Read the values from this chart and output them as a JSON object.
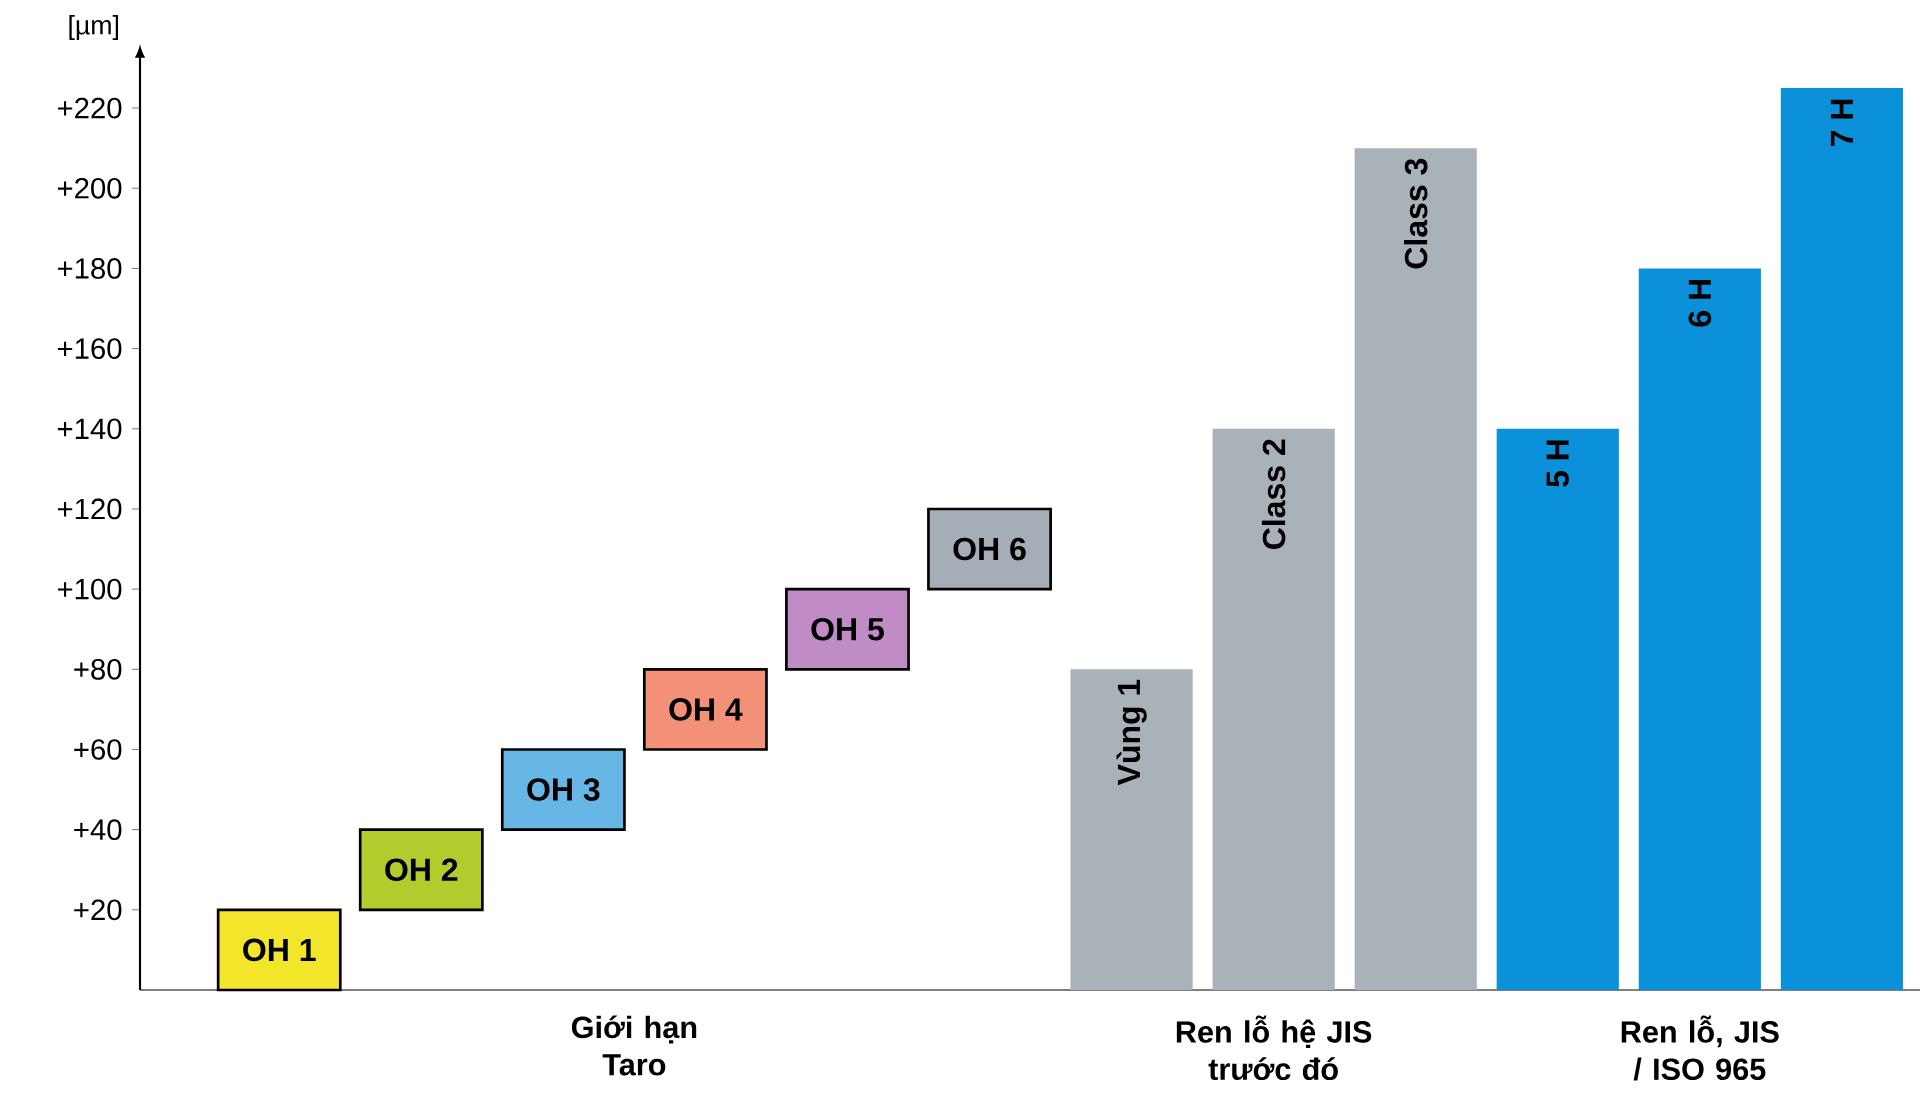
{
  "chart_data": {
    "type": "bar",
    "ylabel": "[µm]",
    "categories": [
      "OH 1",
      "OH 2",
      "OH 3",
      "OH 4",
      "OH 5",
      "OH 6",
      "Vùng 1",
      "Class 2",
      "Class 3",
      "5 H",
      "6 H",
      "7 H"
    ],
    "values": [
      20,
      20,
      20,
      20,
      20,
      20,
      80,
      140,
      210,
      140,
      180,
      225
    ],
    "base": [
      0,
      20,
      40,
      60,
      80,
      100,
      0,
      0,
      0,
      0,
      0,
      0
    ],
    "colors": [
      "#f2e52a",
      "#b3cb2c",
      "#67b6e6",
      "#f39078",
      "#c18bc5",
      "#a5aeb6",
      "#a9b1b9",
      "#a9b1b9",
      "#a9b1b9",
      "#0a91d9",
      "#0a91d9",
      "#0a91d9"
    ],
    "ylim": [
      0,
      232
    ],
    "yticks": [
      {
        "value": 20,
        "label": "+20"
      },
      {
        "value": 40,
        "label": "+40"
      },
      {
        "value": 60,
        "label": "+60"
      },
      {
        "value": 80,
        "label": "+80"
      },
      {
        "value": 100,
        "label": "+100"
      },
      {
        "value": 120,
        "label": "+120"
      },
      {
        "value": 140,
        "label": "+140"
      },
      {
        "value": 160,
        "label": "+160"
      },
      {
        "value": 180,
        "label": "+180"
      },
      {
        "value": 200,
        "label": "+200"
      },
      {
        "value": 220,
        "label": "+220"
      }
    ],
    "annotations": [
      "Giới hạn Taro",
      "Ren lỗ hệ JIS trước đó",
      "Ren lỗ, JIS / ISO 965"
    ],
    "grid": false
  }
}
